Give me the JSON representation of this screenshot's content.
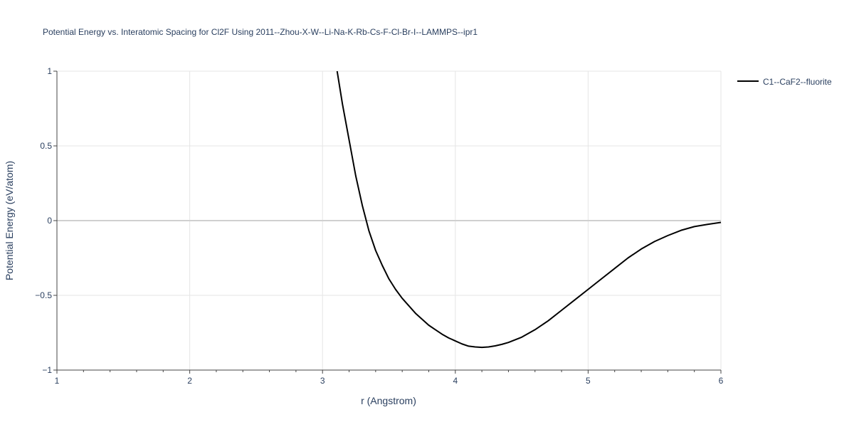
{
  "chart_data": {
    "type": "line",
    "title": "Potential Energy vs. Interatomic Spacing for Cl2F Using 2011--Zhou-X-W--Li-Na-K-Rb-Cs-F-Cl-Br-I--LAMMPS--ipr1",
    "xlabel": "r (Angstrom)",
    "ylabel": "Potential Energy (eV/atom)",
    "xlim": [
      1,
      6
    ],
    "ylim": [
      -1,
      1
    ],
    "x_ticks": [
      1,
      2,
      3,
      4,
      5,
      6
    ],
    "x_tick_labels": [
      "1",
      "2",
      "3",
      "4",
      "5",
      "6"
    ],
    "y_ticks": [
      -1,
      -0.5,
      0,
      0.5,
      1
    ],
    "y_tick_labels": [
      "−1",
      "−0.5",
      "0",
      "0.5",
      "1"
    ],
    "grid": true,
    "legend_position": "top-right",
    "series": [
      {
        "name": "C1--CaF2--fluorite",
        "color": "#000000",
        "x": [
          3.11,
          3.15,
          3.2,
          3.25,
          3.3,
          3.35,
          3.4,
          3.45,
          3.5,
          3.55,
          3.6,
          3.65,
          3.7,
          3.75,
          3.8,
          3.85,
          3.9,
          3.95,
          4.0,
          4.05,
          4.1,
          4.15,
          4.2,
          4.25,
          4.3,
          4.35,
          4.4,
          4.5,
          4.6,
          4.7,
          4.8,
          4.9,
          5.0,
          5.1,
          5.2,
          5.3,
          5.4,
          5.5,
          5.6,
          5.7,
          5.8,
          5.9,
          6.0
        ],
        "y": [
          1.0,
          0.78,
          0.54,
          0.3,
          0.1,
          -0.07,
          -0.2,
          -0.3,
          -0.39,
          -0.46,
          -0.52,
          -0.57,
          -0.62,
          -0.66,
          -0.7,
          -0.73,
          -0.76,
          -0.785,
          -0.805,
          -0.825,
          -0.84,
          -0.845,
          -0.848,
          -0.845,
          -0.838,
          -0.828,
          -0.815,
          -0.78,
          -0.73,
          -0.67,
          -0.6,
          -0.53,
          -0.46,
          -0.39,
          -0.32,
          -0.25,
          -0.19,
          -0.14,
          -0.1,
          -0.065,
          -0.04,
          -0.025,
          -0.012
        ]
      }
    ]
  },
  "colors": {
    "grid": "#e5e5e5",
    "zeroline": "#d0d0d0",
    "axis": "#444444",
    "text": "#2a3f5f"
  }
}
